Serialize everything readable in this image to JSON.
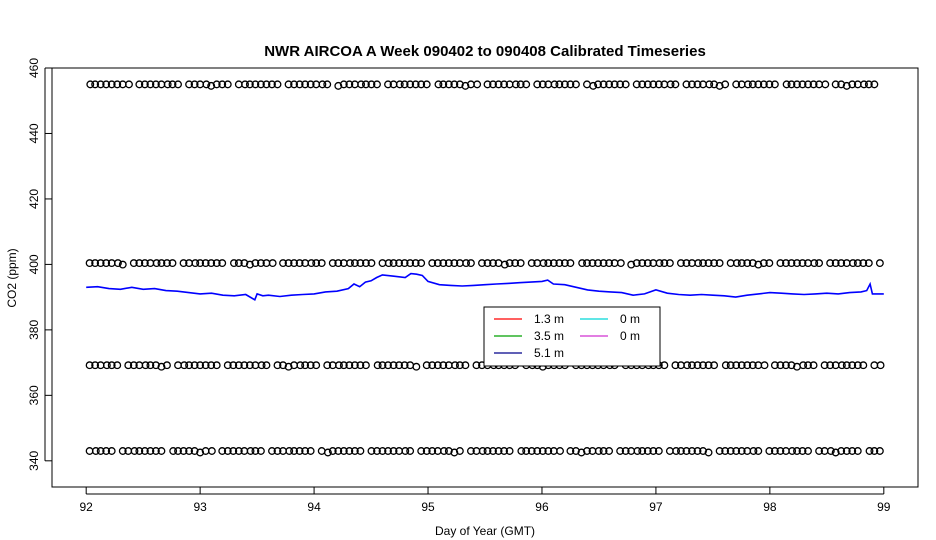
{
  "chart_data": {
    "type": "line",
    "title": "NWR AIRCOA A  Week 090402 to 090408  Calibrated Timeseries",
    "xlabel": "Day of Year (GMT)",
    "ylabel": "CO2 (ppm)",
    "xlim": [
      91.7,
      99.3
    ],
    "ylim": [
      332,
      460
    ],
    "xticks": [
      92,
      93,
      94,
      95,
      96,
      97,
      98,
      99
    ],
    "yticks": [
      340,
      360,
      380,
      400,
      420,
      440,
      460
    ],
    "grid": false,
    "legend": {
      "placement": "center",
      "entries": [
        {
          "label": "1.3 m",
          "color": "#ff0000"
        },
        {
          "label": "0 m",
          "color": "#00d8d8"
        },
        {
          "label": "3.5 m",
          "color": "#00a000"
        },
        {
          "label": "0 m",
          "color": "#d030d0"
        },
        {
          "label": "5.1 m",
          "color": "#00008b"
        }
      ]
    },
    "series": [
      {
        "name": "5.1 m",
        "color": "#0000ff",
        "style": "line",
        "x": [
          92.0,
          92.1,
          92.2,
          92.3,
          92.4,
          92.5,
          92.6,
          92.7,
          92.8,
          92.9,
          93.0,
          93.1,
          93.2,
          93.3,
          93.4,
          93.48,
          93.5,
          93.55,
          93.6,
          93.7,
          93.8,
          93.9,
          94.0,
          94.1,
          94.2,
          94.3,
          94.35,
          94.4,
          94.45,
          94.5,
          94.55,
          94.6,
          94.7,
          94.8,
          94.85,
          94.9,
          94.95,
          95.0,
          95.1,
          95.2,
          95.3,
          95.4,
          95.5,
          95.6,
          95.7,
          95.8,
          95.9,
          96.0,
          96.05,
          96.1,
          96.2,
          96.3,
          96.4,
          96.5,
          96.6,
          96.7,
          96.8,
          96.9,
          97.0,
          97.1,
          97.2,
          97.3,
          97.4,
          97.5,
          97.6,
          97.7,
          97.8,
          97.9,
          98.0,
          98.1,
          98.2,
          98.3,
          98.4,
          98.5,
          98.6,
          98.7,
          98.8,
          98.85,
          98.88,
          98.9,
          99.0
        ],
        "y": [
          393.0,
          393.2,
          392.6,
          392.4,
          393.0,
          392.4,
          392.6,
          392.0,
          391.8,
          391.4,
          391.0,
          391.2,
          390.6,
          390.4,
          390.8,
          389.2,
          391.0,
          390.4,
          390.6,
          390.2,
          390.6,
          390.8,
          391.0,
          391.6,
          391.8,
          392.6,
          394.0,
          393.2,
          394.6,
          395.0,
          396.0,
          396.8,
          396.4,
          396.0,
          397.2,
          397.0,
          396.6,
          394.8,
          393.8,
          393.6,
          393.4,
          393.6,
          393.8,
          394.0,
          394.2,
          394.4,
          394.6,
          394.8,
          395.2,
          394.0,
          393.8,
          393.0,
          392.2,
          391.8,
          391.6,
          391.4,
          390.6,
          391.0,
          392.2,
          391.2,
          390.8,
          390.6,
          390.8,
          390.6,
          390.4,
          390.0,
          390.6,
          391.0,
          391.4,
          391.2,
          391.0,
          390.8,
          391.0,
          391.2,
          391.0,
          391.4,
          391.6,
          392.0,
          394.0,
          391.0,
          391.0
        ]
      },
      {
        "name": "",
        "color": "#000000",
        "style": "points",
        "levels": [
          455,
          400.4,
          369.2,
          343
        ],
        "x_start": 92.03,
        "x_end": 98.99
      }
    ]
  }
}
